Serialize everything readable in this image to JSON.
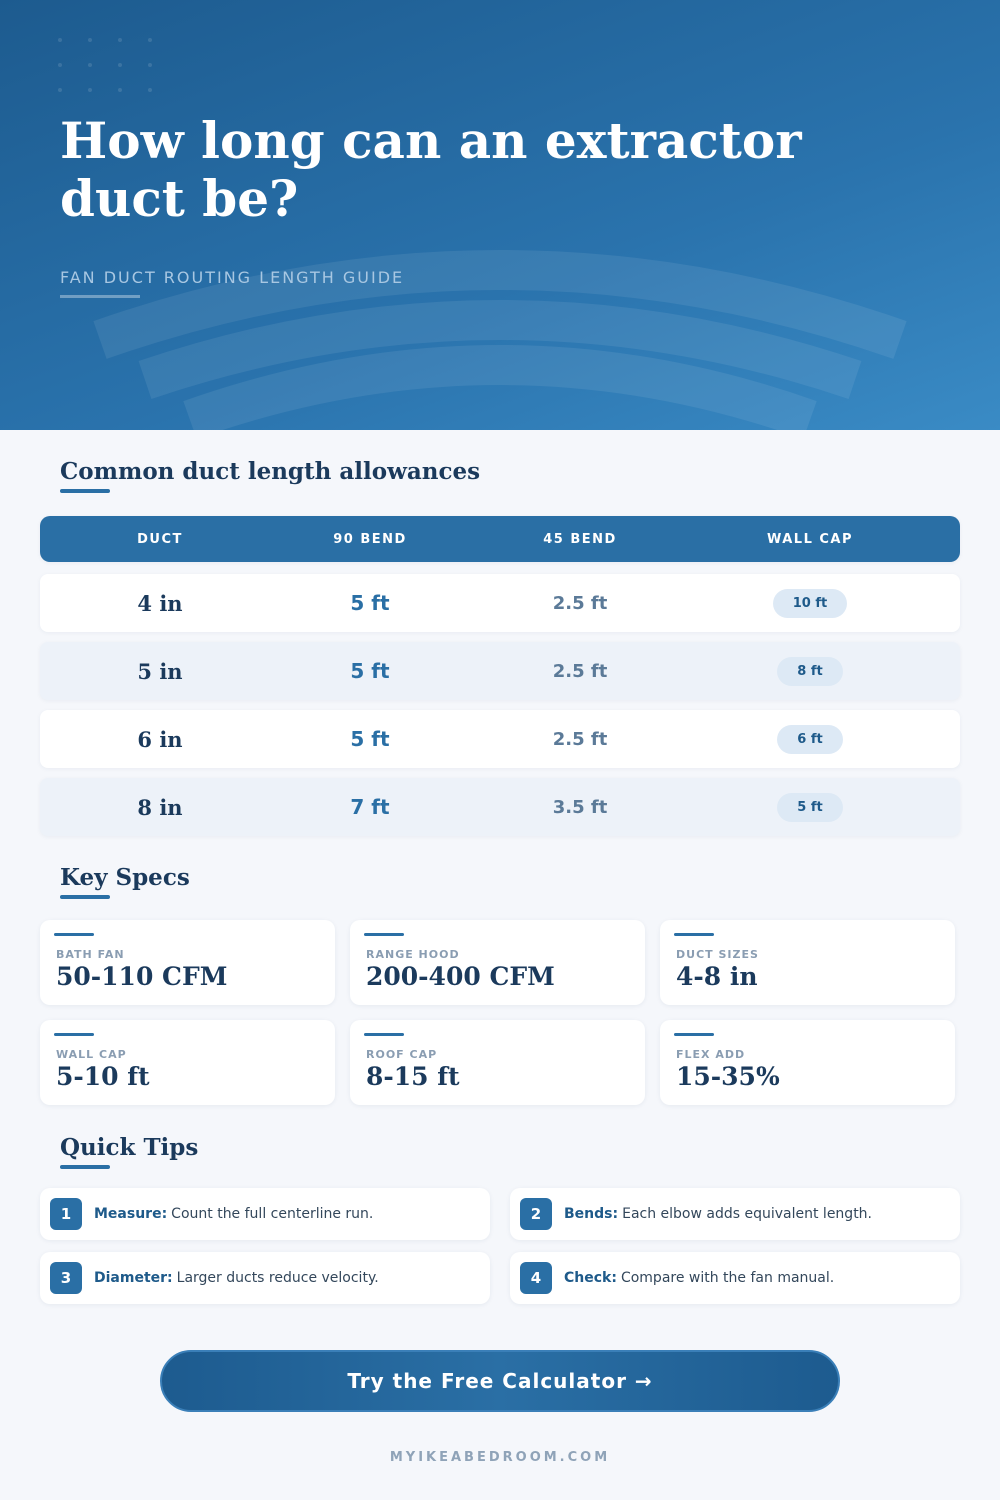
{
  "header": {
    "title": "How long can an extractor duct be?",
    "subtitle": "FAN DUCT ROUTING LENGTH GUIDE"
  },
  "table": {
    "title": "Common duct length allowances",
    "columns": [
      "DUCT",
      "90 BEND",
      "45 BEND",
      "WALL CAP"
    ],
    "rows": [
      [
        "4 in",
        "5 ft",
        "2.5 ft",
        "10 ft"
      ],
      [
        "5 in",
        "5 ft",
        "2.5 ft",
        "8 ft"
      ],
      [
        "6 in",
        "5 ft",
        "2.5 ft",
        "6 ft"
      ],
      [
        "8 in",
        "7 ft",
        "3.5 ft",
        "5 ft"
      ]
    ]
  },
  "specs": {
    "title": "Key Specs",
    "items": [
      {
        "label": "BATH FAN",
        "value": "50-110 CFM"
      },
      {
        "label": "RANGE HOOD",
        "value": "200-400 CFM"
      },
      {
        "label": "DUCT SIZES",
        "value": "4-8 in"
      },
      {
        "label": "WALL CAP",
        "value": "5-10 ft"
      },
      {
        "label": "ROOF CAP",
        "value": "8-15 ft"
      },
      {
        "label": "FLEX ADD",
        "value": "15-35%"
      }
    ]
  },
  "tips": {
    "title": "Quick Tips",
    "items": [
      {
        "number": 1,
        "label": "Measure:",
        "text": "Count the full centerline run."
      },
      {
        "number": 2,
        "label": "Bends:",
        "text": "Each elbow adds equivalent length."
      },
      {
        "number": 3,
        "label": "Diameter:",
        "text": "Larger ducts reduce velocity."
      },
      {
        "number": 4,
        "label": "Check:",
        "text": "Compare with the fan manual."
      }
    ]
  },
  "cta": "Try the Free Calculator →",
  "footer": "MYIKEABEDROOM.COM"
}
